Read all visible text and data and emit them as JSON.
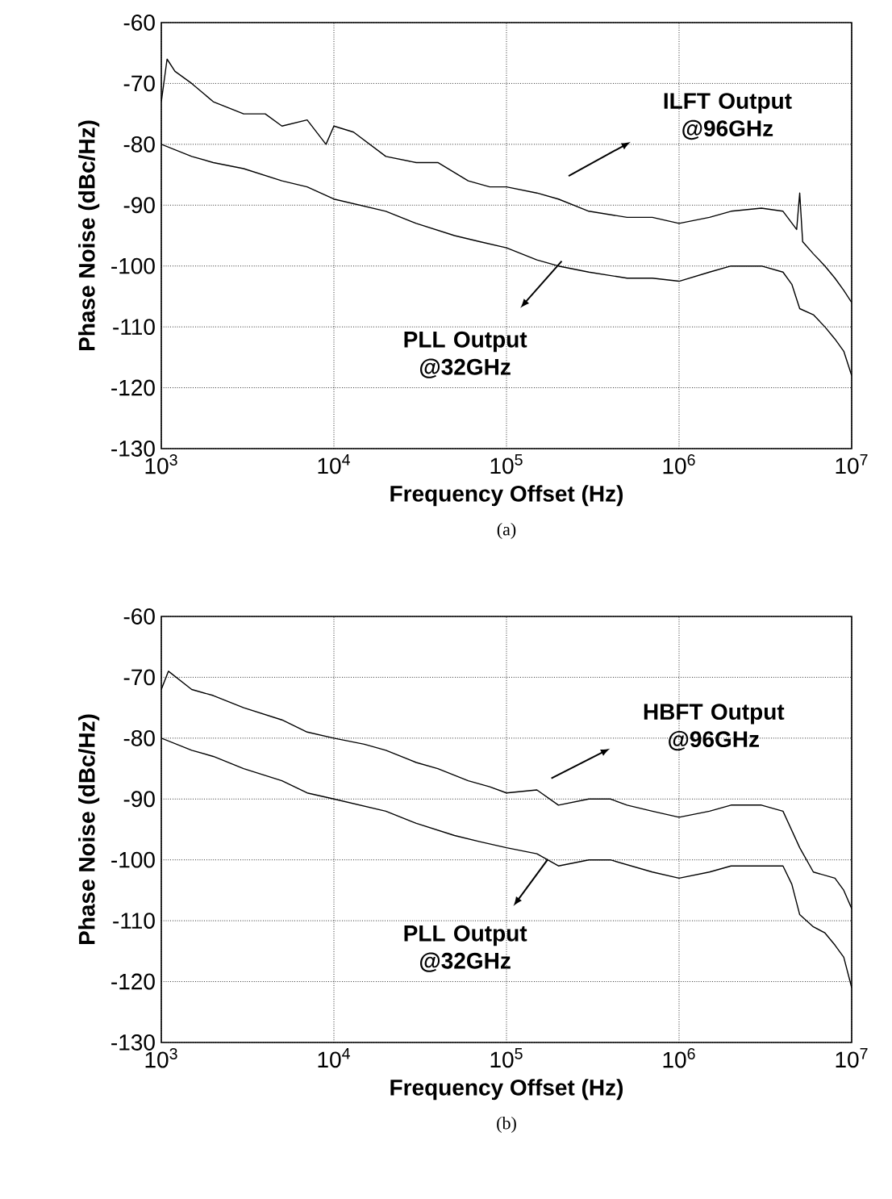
{
  "chart_data": [
    {
      "type": "line",
      "xlabel": "Frequency Offset (Hz)",
      "ylabel": "Phase Noise (dBc/Hz)",
      "log": "x",
      "grid": true,
      "xlim": [
        1000,
        10000000
      ],
      "ylim": [
        -130,
        -60
      ],
      "xticks": [
        {
          "value": 1000,
          "label": "10$^{3}$"
        },
        {
          "value": 10000,
          "label": "10$^{4}$"
        },
        {
          "value": 100000,
          "label": "10$^{5}$"
        },
        {
          "value": 1000000,
          "label": "10$^{6}$"
        },
        {
          "value": 10000000,
          "label": "10$^{7}$"
        }
      ],
      "yticks": [
        -130,
        -120,
        -110,
        -100,
        -90,
        -80,
        -70,
        -60
      ],
      "annotations": [
        "(a)"
      ],
      "series": [
        {
          "name": "ILFT Output @96GHz",
          "color": "#000000",
          "x": [
            1000,
            1080,
            1200,
            1500,
            2000,
            3000,
            4000,
            5000,
            7000,
            9000,
            10000,
            13000,
            20000,
            30000,
            40000,
            60000,
            80000,
            100000,
            150000,
            200000,
            300000,
            500000,
            700000,
            1000000,
            1500000,
            2000000,
            3000000,
            4000000,
            4800000,
            5000000,
            5200000,
            6000000,
            7000000,
            8000000,
            9000000,
            10000000
          ],
          "values": [
            -73,
            -66,
            -68,
            -70,
            -73,
            -75,
            -75,
            -77,
            -76,
            -80,
            -77,
            -78,
            -82,
            -83,
            -83,
            -86,
            -87,
            -87,
            -88,
            -89,
            -91,
            -92,
            -92,
            -93,
            -92,
            -91,
            -90.5,
            -91,
            -94,
            -88,
            -96,
            -98,
            -100,
            -102,
            -104,
            -106
          ]
        },
        {
          "name": "PLL Output @32GHz",
          "color": "#000000",
          "x": [
            1000,
            1500,
            2000,
            3000,
            5000,
            7000,
            10000,
            20000,
            30000,
            50000,
            70000,
            100000,
            150000,
            200000,
            300000,
            500000,
            700000,
            1000000,
            1500000,
            2000000,
            3000000,
            4000000,
            4500000,
            5000000,
            6000000,
            7000000,
            8000000,
            9000000,
            10000000
          ],
          "values": [
            -80,
            -82,
            -83,
            -84,
            -86,
            -87,
            -89,
            -91,
            -93,
            -95,
            -96,
            -97,
            -99,
            -100,
            -101,
            -102,
            -102,
            -102.5,
            -101,
            -100,
            -100,
            -101,
            -103,
            -107,
            -108,
            -110,
            -112,
            -114,
            -118
          ]
        }
      ]
    },
    {
      "type": "line",
      "xlabel": "Frequency Offset (Hz)",
      "ylabel": "Phase Noise (dBc/Hz)",
      "log": "x",
      "grid": true,
      "xlim": [
        1000,
        10000000
      ],
      "ylim": [
        -130,
        -60
      ],
      "xticks": [
        {
          "value": 1000,
          "label": "10$^{3}$"
        },
        {
          "value": 10000,
          "label": "10$^{4}$"
        },
        {
          "value": 100000,
          "label": "10$^{5}$"
        },
        {
          "value": 1000000,
          "label": "10$^{6}$"
        },
        {
          "value": 10000000,
          "label": "10$^{7}$"
        }
      ],
      "yticks": [
        -130,
        -120,
        -110,
        -100,
        -90,
        -80,
        -70,
        -60
      ],
      "annotations": [
        "(b)"
      ],
      "series": [
        {
          "name": "HBFT Output @96GHz",
          "color": "#000000",
          "x": [
            1000,
            1100,
            1500,
            2000,
            3000,
            5000,
            7000,
            10000,
            15000,
            20000,
            30000,
            40000,
            60000,
            80000,
            100000,
            150000,
            200000,
            300000,
            400000,
            500000,
            700000,
            1000000,
            1500000,
            2000000,
            3000000,
            4000000,
            5000000,
            6000000,
            8000000,
            9000000,
            10000000
          ],
          "values": [
            -72,
            -69,
            -72,
            -73,
            -75,
            -77,
            -79,
            -80,
            -81,
            -82,
            -84,
            -85,
            -87,
            -88,
            -89,
            -88.5,
            -91,
            -90,
            -90,
            -91,
            -92,
            -93,
            -92,
            -91,
            -91,
            -92,
            -98,
            -102,
            -103,
            -105,
            -108
          ]
        },
        {
          "name": "PLL Output @32GHz",
          "color": "#000000",
          "x": [
            1000,
            1500,
            2000,
            3000,
            5000,
            7000,
            10000,
            20000,
            30000,
            50000,
            70000,
            100000,
            150000,
            200000,
            300000,
            400000,
            700000,
            1000000,
            1500000,
            2000000,
            3000000,
            4000000,
            4500000,
            5000000,
            6000000,
            7000000,
            8000000,
            9000000,
            10000000
          ],
          "values": [
            -80,
            -82,
            -83,
            -85,
            -87,
            -89,
            -90,
            -92,
            -94,
            -96,
            -97,
            -98,
            -99,
            -101,
            -100,
            -100,
            -102,
            -103,
            -102,
            -101,
            -101,
            -101,
            -104,
            -109,
            -111,
            -112,
            -114,
            -116,
            -121
          ]
        }
      ]
    }
  ]
}
